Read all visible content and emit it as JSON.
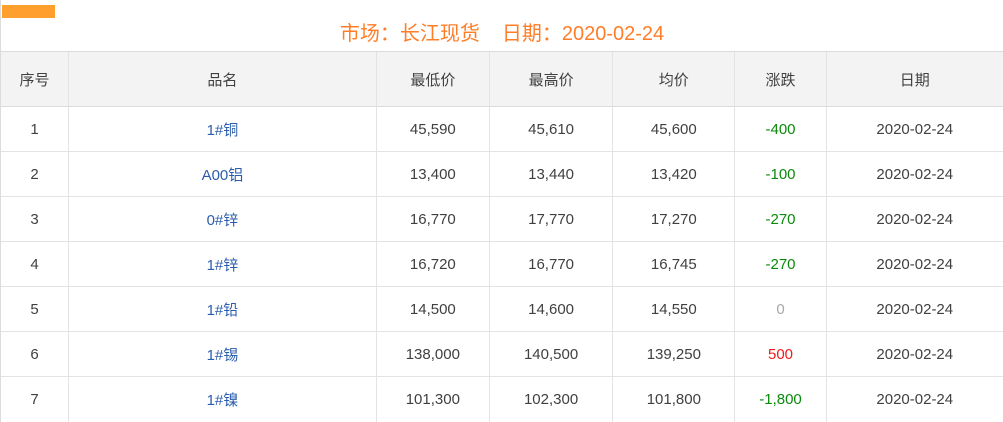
{
  "title": {
    "market_label": "市场：长江现货",
    "date_label": "日期：2020-02-24"
  },
  "colors": {
    "title_orange": "#ff7d27",
    "top_left_bar_orange": "#ffa02e",
    "product_link_blue": "#2b5dad",
    "header_bg": "#f3f3f3",
    "border_gray": "#e3e3e3",
    "change": {
      "up": "#ee1c1c",
      "down": "#0a8a0a",
      "flat": "#a8a8a8"
    }
  },
  "table": {
    "headers": {
      "no": "序号",
      "name": "品名",
      "low": "最低价",
      "high": "最高价",
      "avg": "均价",
      "change": "涨跌",
      "date": "日期"
    },
    "rows": [
      {
        "no": "1",
        "name": "1#铜",
        "low": "45,590",
        "high": "45,610",
        "avg": "45,600",
        "change": "-400",
        "change_dir": "down",
        "date": "2020-02-24"
      },
      {
        "no": "2",
        "name": "A00铝",
        "low": "13,400",
        "high": "13,440",
        "avg": "13,420",
        "change": "-100",
        "change_dir": "down",
        "date": "2020-02-24"
      },
      {
        "no": "3",
        "name": "0#锌",
        "low": "16,770",
        "high": "17,770",
        "avg": "17,270",
        "change": "-270",
        "change_dir": "down",
        "date": "2020-02-24"
      },
      {
        "no": "4",
        "name": "1#锌",
        "low": "16,720",
        "high": "16,770",
        "avg": "16,745",
        "change": "-270",
        "change_dir": "down",
        "date": "2020-02-24"
      },
      {
        "no": "5",
        "name": "1#铅",
        "low": "14,500",
        "high": "14,600",
        "avg": "14,550",
        "change": "0",
        "change_dir": "flat",
        "date": "2020-02-24"
      },
      {
        "no": "6",
        "name": "1#锡",
        "low": "138,000",
        "high": "140,500",
        "avg": "139,250",
        "change": "500",
        "change_dir": "up",
        "date": "2020-02-24"
      },
      {
        "no": "7",
        "name": "1#镍",
        "low": "101,300",
        "high": "102,300",
        "avg": "101,800",
        "change": "-1,800",
        "change_dir": "down",
        "date": "2020-02-24"
      }
    ]
  }
}
